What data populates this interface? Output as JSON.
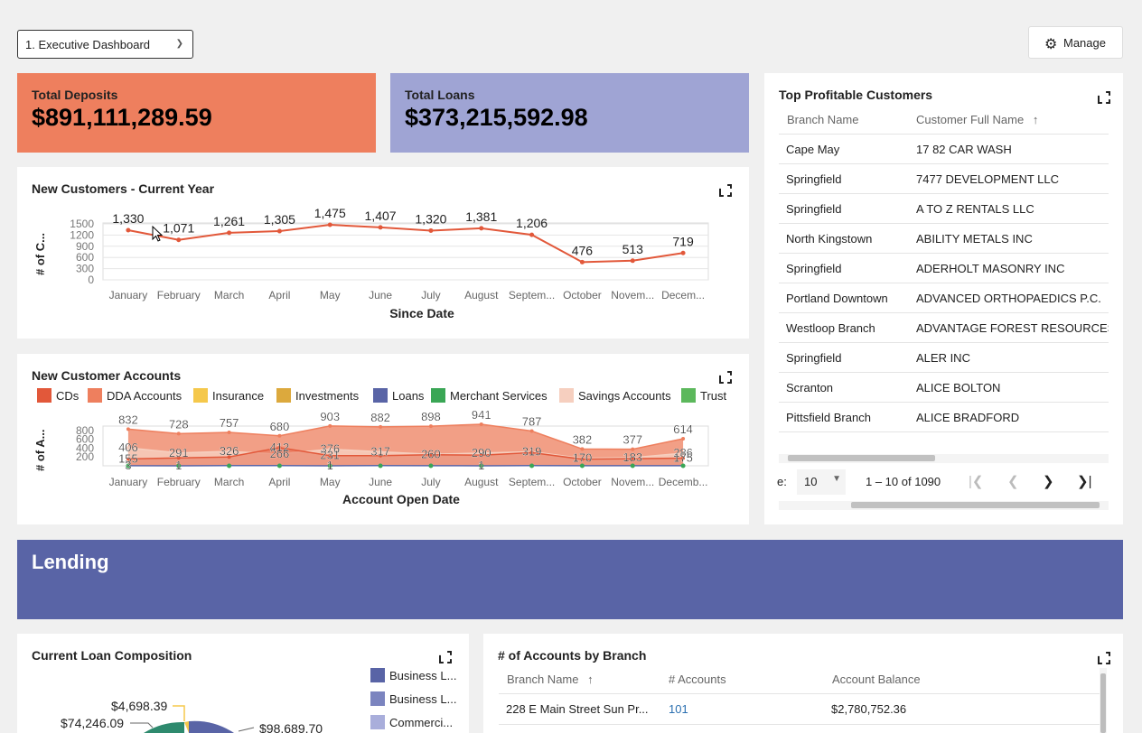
{
  "toolbar": {
    "dashboard_select": "1. Executive Dashboard",
    "manage_label": "Manage"
  },
  "kpis": [
    {
      "label": "Total Deposits",
      "value": "$891,111,289.59",
      "color": "#ee7f5e"
    },
    {
      "label": "Total Loans",
      "value": "$373,215,592.98",
      "color": "#9fa4d4"
    }
  ],
  "new_customers": {
    "title": "New Customers - Current Year",
    "ylabel": "# of C...",
    "xlabel": "Since Date",
    "y_ticks": [
      "1500",
      "1200",
      "900",
      "600",
      "300",
      "0"
    ]
  },
  "new_accounts": {
    "title": "New Customer Accounts",
    "ylabel": "# of A...",
    "xlabel": "Account Open Date",
    "y_ticks": [
      "800",
      "600",
      "400",
      "200"
    ],
    "legend": [
      {
        "name": "CDs",
        "color": "#e2583a"
      },
      {
        "name": "DDA Accounts",
        "color": "#ee7f5e"
      },
      {
        "name": "Insurance",
        "color": "#f5c84b"
      },
      {
        "name": "Investments",
        "color": "#dca93d"
      },
      {
        "name": "Loans",
        "color": "#5964a6"
      },
      {
        "name": "Merchant Services",
        "color": "#3aa655"
      },
      {
        "name": "Savings Accounts",
        "color": "#f6cfbf"
      },
      {
        "name": "Trust",
        "color": "#5cb85c"
      }
    ]
  },
  "chart_data": [
    {
      "type": "line",
      "title": "New Customers - Current Year",
      "xlabel": "Since Date",
      "ylabel": "# of C...",
      "categories": [
        "January",
        "February",
        "March",
        "April",
        "May",
        "June",
        "July",
        "August",
        "Septem...",
        "October",
        "Novem...",
        "Decem..."
      ],
      "values": [
        1330,
        1071,
        1261,
        1305,
        1475,
        1407,
        1320,
        1381,
        1206,
        476,
        513,
        719
      ],
      "data_labels": [
        "1,330",
        "1,071",
        "1,261",
        "1,305",
        "1,475",
        "1,407",
        "1,320",
        "1,381",
        "1,206",
        "476",
        "513",
        "719"
      ],
      "ylim": [
        0,
        1500
      ],
      "grid": true
    },
    {
      "type": "area",
      "title": "New Customer Accounts",
      "xlabel": "Account Open Date",
      "ylabel": "# of A...",
      "categories": [
        "January",
        "February",
        "March",
        "April",
        "May",
        "June",
        "July",
        "August",
        "Septem...",
        "October",
        "Novem...",
        "Decemb..."
      ],
      "ylim": [
        0,
        900
      ],
      "series": [
        {
          "name": "DDA Accounts",
          "values": [
            832,
            728,
            757,
            680,
            903,
            882,
            898,
            941,
            787,
            382,
            377,
            614
          ]
        },
        {
          "name": "Savings Accounts",
          "values": [
            406,
            291,
            326,
            266,
            376,
            317,
            260,
            290,
            319,
            170,
            183,
            286
          ]
        },
        {
          "name": "CDs",
          "values": [
            155,
            180,
            200,
            412,
            231,
            230,
            250,
            240,
            300,
            150,
            160,
            175
          ]
        },
        {
          "name": "Loans",
          "values": [
            3,
            1,
            5,
            4,
            1,
            6,
            3,
            1,
            5,
            2,
            3,
            2
          ]
        }
      ],
      "data_labels": [
        [
          "832",
          "728",
          "757",
          "680",
          "903",
          "882",
          "898",
          "941",
          "787",
          "382",
          "377",
          "614"
        ],
        [
          "406",
          "291",
          "326",
          "266",
          "376",
          "317",
          "260",
          "290",
          "319",
          "170",
          "183",
          "286"
        ],
        [
          "155",
          "",
          "",
          "412",
          "231",
          "",
          "",
          "",
          "",
          "",
          "",
          "175"
        ],
        [
          "3",
          "1",
          "",
          "",
          "1",
          "",
          "",
          "1",
          "",
          "",
          "",
          ""
        ]
      ]
    },
    {
      "type": "pie",
      "title": "Current Loan Composition",
      "data_labels": [
        "$4,698.39",
        "$74,246.09",
        "$98,689.70"
      ],
      "legend": [
        "Business L...",
        "Business L...",
        "Commerci..."
      ]
    }
  ],
  "top_customers": {
    "title": "Top Profitable Customers",
    "columns": [
      "Branch Name",
      "Customer Full Name"
    ],
    "rows": [
      [
        "Cape May",
        "17 82 CAR WASH"
      ],
      [
        "Springfield",
        "7477 DEVELOPMENT LLC"
      ],
      [
        "Springfield",
        "A TO Z RENTALS LLC"
      ],
      [
        "North Kingstown",
        "ABILITY METALS INC"
      ],
      [
        "Springfield",
        "ADERHOLT MASONRY INC"
      ],
      [
        "Portland Downtown",
        "ADVANCED ORTHOPAEDICS P.C."
      ],
      [
        "Westloop Branch",
        "ADVANTAGE FOREST RESOURCES IN"
      ],
      [
        "Springfield",
        "ALER INC"
      ],
      [
        "Scranton",
        "ALICE BOLTON"
      ],
      [
        "Pittsfield Branch",
        "ALICE BRADFORD"
      ]
    ],
    "pagination": {
      "label": "e:",
      "page_size": "10",
      "range": "1 – 10 of 1090"
    }
  },
  "lending": {
    "title": "Lending"
  },
  "loan_composition": {
    "title": "Current Loan Composition",
    "legend": [
      {
        "name": "Business L...",
        "color": "#5964a6"
      },
      {
        "name": "Business L...",
        "color": "#7b84bf"
      },
      {
        "name": "Commerci...",
        "color": "#a9aedb"
      }
    ],
    "labels": [
      "$4,698.39",
      "$74,246.09",
      "$98,689.70"
    ]
  },
  "accounts_by_branch": {
    "title": "# of Accounts by Branch",
    "columns": [
      "Branch Name",
      "# Accounts",
      "Account Balance"
    ],
    "rows": [
      [
        "228 E Main Street Sun Pr...",
        "101",
        "$2,780,752.36"
      ]
    ]
  }
}
